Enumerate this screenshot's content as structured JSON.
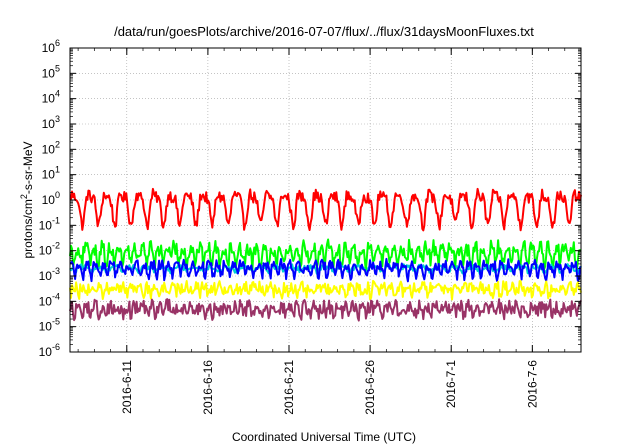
{
  "chart_data": {
    "type": "line",
    "title": "/data/run/goesPlots/archive/2016-07-07/flux/../flux/31daysMoonFluxes.txt",
    "xlabel": "Coordinated Universal Time (UTC)",
    "ylabel": {
      "base": "protons/cm",
      "sup": "2",
      "rest": "-s-sr-MeV"
    },
    "y_scale": "log",
    "ylim_exponents": [
      -6,
      6
    ],
    "y_ticks": [
      {
        "base": "10",
        "exp": "-6"
      },
      {
        "base": "10",
        "exp": "-5"
      },
      {
        "base": "10",
        "exp": "-4"
      },
      {
        "base": "10",
        "exp": "-3"
      },
      {
        "base": "10",
        "exp": "-2"
      },
      {
        "base": "10",
        "exp": "-1"
      },
      {
        "base": "10",
        "exp": "0"
      },
      {
        "base": "10",
        "exp": "1"
      },
      {
        "base": "10",
        "exp": "2"
      },
      {
        "base": "10",
        "exp": "3"
      },
      {
        "base": "10",
        "exp": "4"
      },
      {
        "base": "10",
        "exp": "5"
      },
      {
        "base": "10",
        "exp": "6"
      }
    ],
    "x_range": [
      "2016-06-07T12:00",
      "2016-07-09T00:00"
    ],
    "x_ticks": [
      {
        "label": "2016-6-11",
        "date": "2016-06-11"
      },
      {
        "label": "2016-6-16",
        "date": "2016-06-16"
      },
      {
        "label": "2016-6-21",
        "date": "2016-06-21"
      },
      {
        "label": "2016-6-26",
        "date": "2016-06-26"
      },
      {
        "label": "2016-7-1",
        "date": "2016-07-01"
      },
      {
        "label": "2016-7-6",
        "date": "2016-07-06"
      }
    ],
    "grid": true,
    "series": [
      {
        "color": "#ff0000",
        "center": 0.6,
        "spread": 2.2,
        "noise": 0.22,
        "period_days": 1.0,
        "phase": 0.0
      },
      {
        "color": "#00ff00",
        "center": 0.008,
        "spread": 1.2,
        "noise": 0.3,
        "period_days": 0.5,
        "phase": 0.3
      },
      {
        "color": "#00d2d2",
        "center": 0.002,
        "spread": 0.35,
        "noise": 0.1,
        "period_days": 1.0,
        "phase": 0.5
      },
      {
        "color": "#0000ff",
        "center": 0.002,
        "spread": 0.9,
        "noise": 0.2,
        "period_days": 0.5,
        "phase": 0.1
      },
      {
        "color": "#ffff00",
        "center": 0.0003,
        "spread": 0.5,
        "noise": 0.25,
        "period_days": 0.5,
        "phase": 0.7
      },
      {
        "color": "#993366",
        "center": 5e-05,
        "spread": 0.5,
        "noise": 0.3,
        "period_days": 0.5,
        "phase": 0.2
      }
    ]
  }
}
